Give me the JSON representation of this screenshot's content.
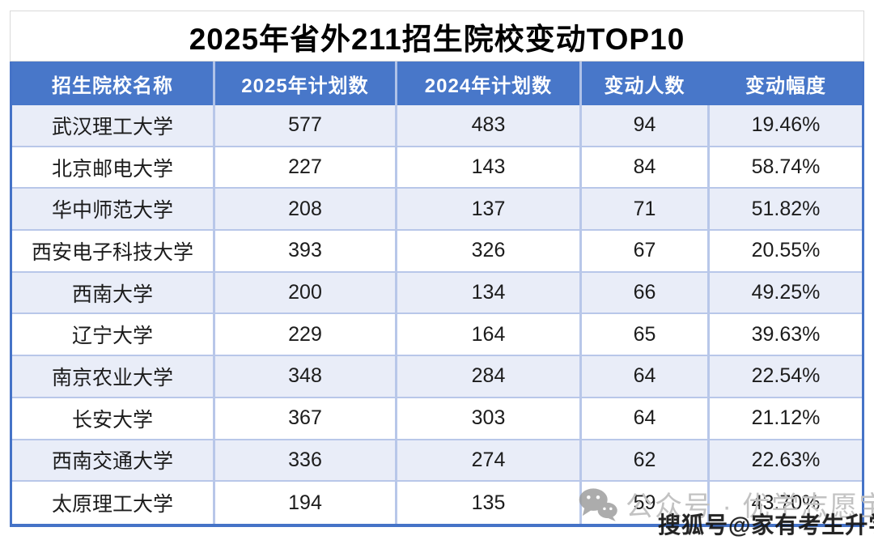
{
  "page": {
    "title": "2025年省外211招生院校变动TOP10"
  },
  "chart_data": {
    "type": "table",
    "title": "2025年省外211招生院校变动TOP10",
    "columns": [
      "招生院校名称",
      "2025年计划数",
      "2024年计划数",
      "变动人数",
      "变动幅度"
    ],
    "rows": [
      [
        "武汉理工大学",
        577,
        483,
        94,
        "19.46%"
      ],
      [
        "北京邮电大学",
        227,
        143,
        84,
        "58.74%"
      ],
      [
        "华中师范大学",
        208,
        137,
        71,
        "51.82%"
      ],
      [
        "西安电子科技大学",
        393,
        326,
        67,
        "20.55%"
      ],
      [
        "西南大学",
        200,
        134,
        66,
        "49.25%"
      ],
      [
        "辽宁大学",
        229,
        164,
        65,
        "39.63%"
      ],
      [
        "南京农业大学",
        348,
        284,
        64,
        "22.54%"
      ],
      [
        "长安大学",
        367,
        303,
        64,
        "21.12%"
      ],
      [
        "西南交通大学",
        336,
        274,
        62,
        "22.63%"
      ],
      [
        "太原理工大学",
        194,
        135,
        59,
        "43.70%"
      ]
    ],
    "layout": {
      "header_style": "blue-banded",
      "row_striping": "odd-rows-tinted"
    }
  },
  "watermarks": {
    "wechat_text": "公众号 · 优学志愿宝",
    "wechat_icon": "wechat-icon",
    "sohu_text": "搜狐号@家有考生升学帮"
  },
  "colors": {
    "header_bg": "#4877C9",
    "header_divider": "#AFC2E8",
    "row_alt_bg": "#E9EDF8",
    "row_bg": "#FFFFFF",
    "divider": "#B8C7E9",
    "outer_border": "#4573C7",
    "title_border": "#D9D9D9",
    "cell_text": "#1C1C1C",
    "watermark_gray": "#C2C2C2"
  }
}
